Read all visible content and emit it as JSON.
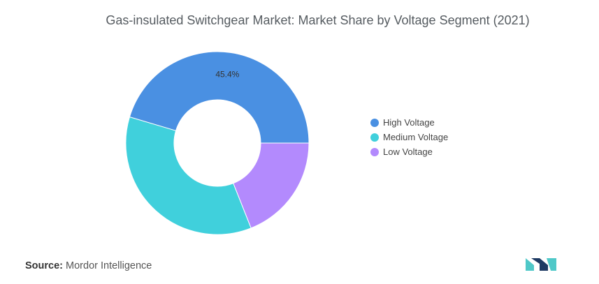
{
  "title": "Gas-insulated Switchgear Market: Market Share by Voltage Segment (2021)",
  "source": {
    "label": "Source:",
    "text": "Mordor Intelligence"
  },
  "colors": {
    "high": "#4a90e2",
    "medium": "#40d0dc",
    "low": "#b38afd",
    "logo_dark": "#1d3a63",
    "logo_teal": "#4fc8c8"
  },
  "chart_data": {
    "type": "pie",
    "style": "donut",
    "title": "Gas-insulated Switchgear Market: Market Share by Voltage Segment (2021)",
    "legend_position": "right",
    "slices": [
      {
        "name": "High Voltage",
        "value": 45.4,
        "color": "#4a90e2",
        "label": "45.4%"
      },
      {
        "name": "Medium Voltage",
        "value": 35.6,
        "color": "#40d0dc",
        "label": ""
      },
      {
        "name": "Low Voltage",
        "value": 19.0,
        "color": "#b38afd",
        "label": ""
      }
    ]
  }
}
